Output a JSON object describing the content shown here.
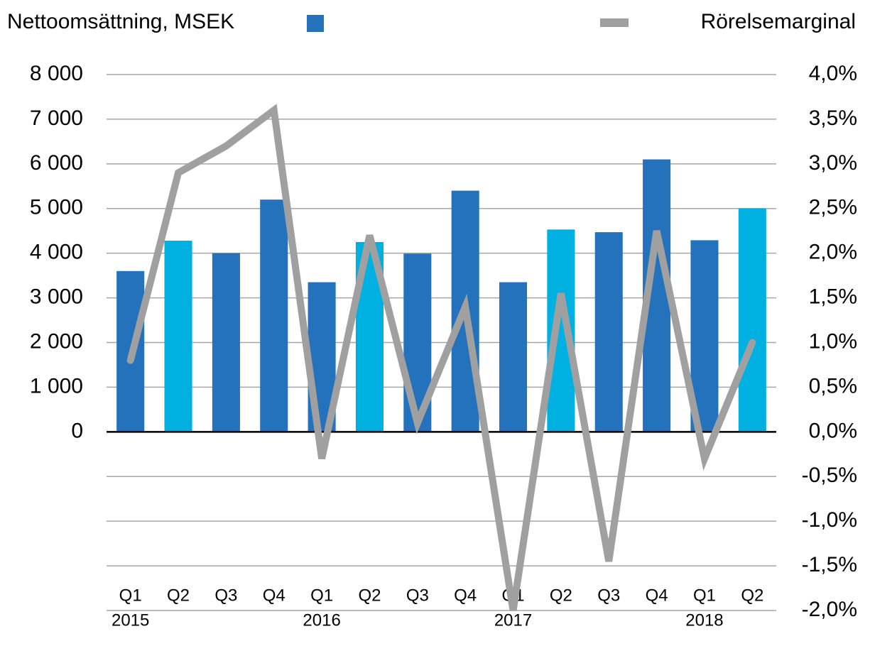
{
  "chart_data": {
    "type": "bar_line",
    "categories": [
      "Q1",
      "Q2",
      "Q3",
      "Q4",
      "Q1",
      "Q2",
      "Q3",
      "Q4",
      "Q1",
      "Q2",
      "Q3",
      "Q4",
      "Q1",
      "Q2"
    ],
    "year_labels": [
      "2015",
      null,
      null,
      null,
      "2016",
      null,
      null,
      null,
      "2017",
      null,
      null,
      null,
      "2018",
      null
    ],
    "series": [
      {
        "name": "Nettoomsättning, MSEK",
        "type": "bar",
        "color": "#2472bb",
        "colors": [
          "#2472bb",
          "#00b0e0",
          "#2472bb",
          "#2472bb",
          "#2472bb",
          "#00b0e0",
          "#2472bb",
          "#2472bb",
          "#2472bb",
          "#00b0e0",
          "#2472bb",
          "#2472bb",
          "#2472bb",
          "#00b0e0"
        ],
        "values": [
          3600,
          4280,
          4000,
          5200,
          3350,
          4250,
          3990,
          5400,
          3350,
          4530,
          4470,
          6100,
          4290,
          5000
        ]
      },
      {
        "name": "Rörelsemarginal",
        "type": "line",
        "axis": "y2",
        "color": "#a0a0a0",
        "values": [
          0.8,
          2.9,
          3.2,
          3.6,
          -0.3,
          2.2,
          0.1,
          1.4,
          -2.0,
          1.55,
          -1.45,
          2.25,
          -0.3,
          1.0
        ]
      }
    ],
    "ylim": [
      -4000,
      8000
    ],
    "yticks": [
      0,
      {
        "value": 1000,
        "label": "1 000"
      },
      {
        "value": 2000,
        "label": "2 000"
      },
      {
        "value": 3000,
        "label": "3 000"
      },
      {
        "value": 4000,
        "label": "4 000"
      },
      {
        "value": 5000,
        "label": "5 000"
      },
      {
        "value": 6000,
        "label": "6 000"
      },
      {
        "value": 7000,
        "label": "7 000"
      },
      {
        "value": 8000,
        "label": "8 000"
      }
    ],
    "y2lim": [
      -2,
      4
    ],
    "y2ticks": [
      {
        "value": -2,
        "label": "-2,0%"
      },
      {
        "value": -1.5,
        "label": "-1,5%"
      },
      {
        "value": -1,
        "label": "-1,0%"
      },
      {
        "value": -0.5,
        "label": "-0,5%"
      },
      {
        "value": 0,
        "label": "0,0%"
      },
      {
        "value": 0.5,
        "label": "0,5%"
      },
      {
        "value": 1,
        "label": "1,0%"
      },
      {
        "value": 1.5,
        "label": "1,5%"
      },
      {
        "value": 2,
        "label": "2,0%"
      },
      {
        "value": 2.5,
        "label": "2,5%"
      },
      {
        "value": 3,
        "label": "3,0%"
      },
      {
        "value": 3.5,
        "label": "3,5%"
      },
      {
        "value": 4,
        "label": "4,0%"
      }
    ],
    "grid": true
  }
}
